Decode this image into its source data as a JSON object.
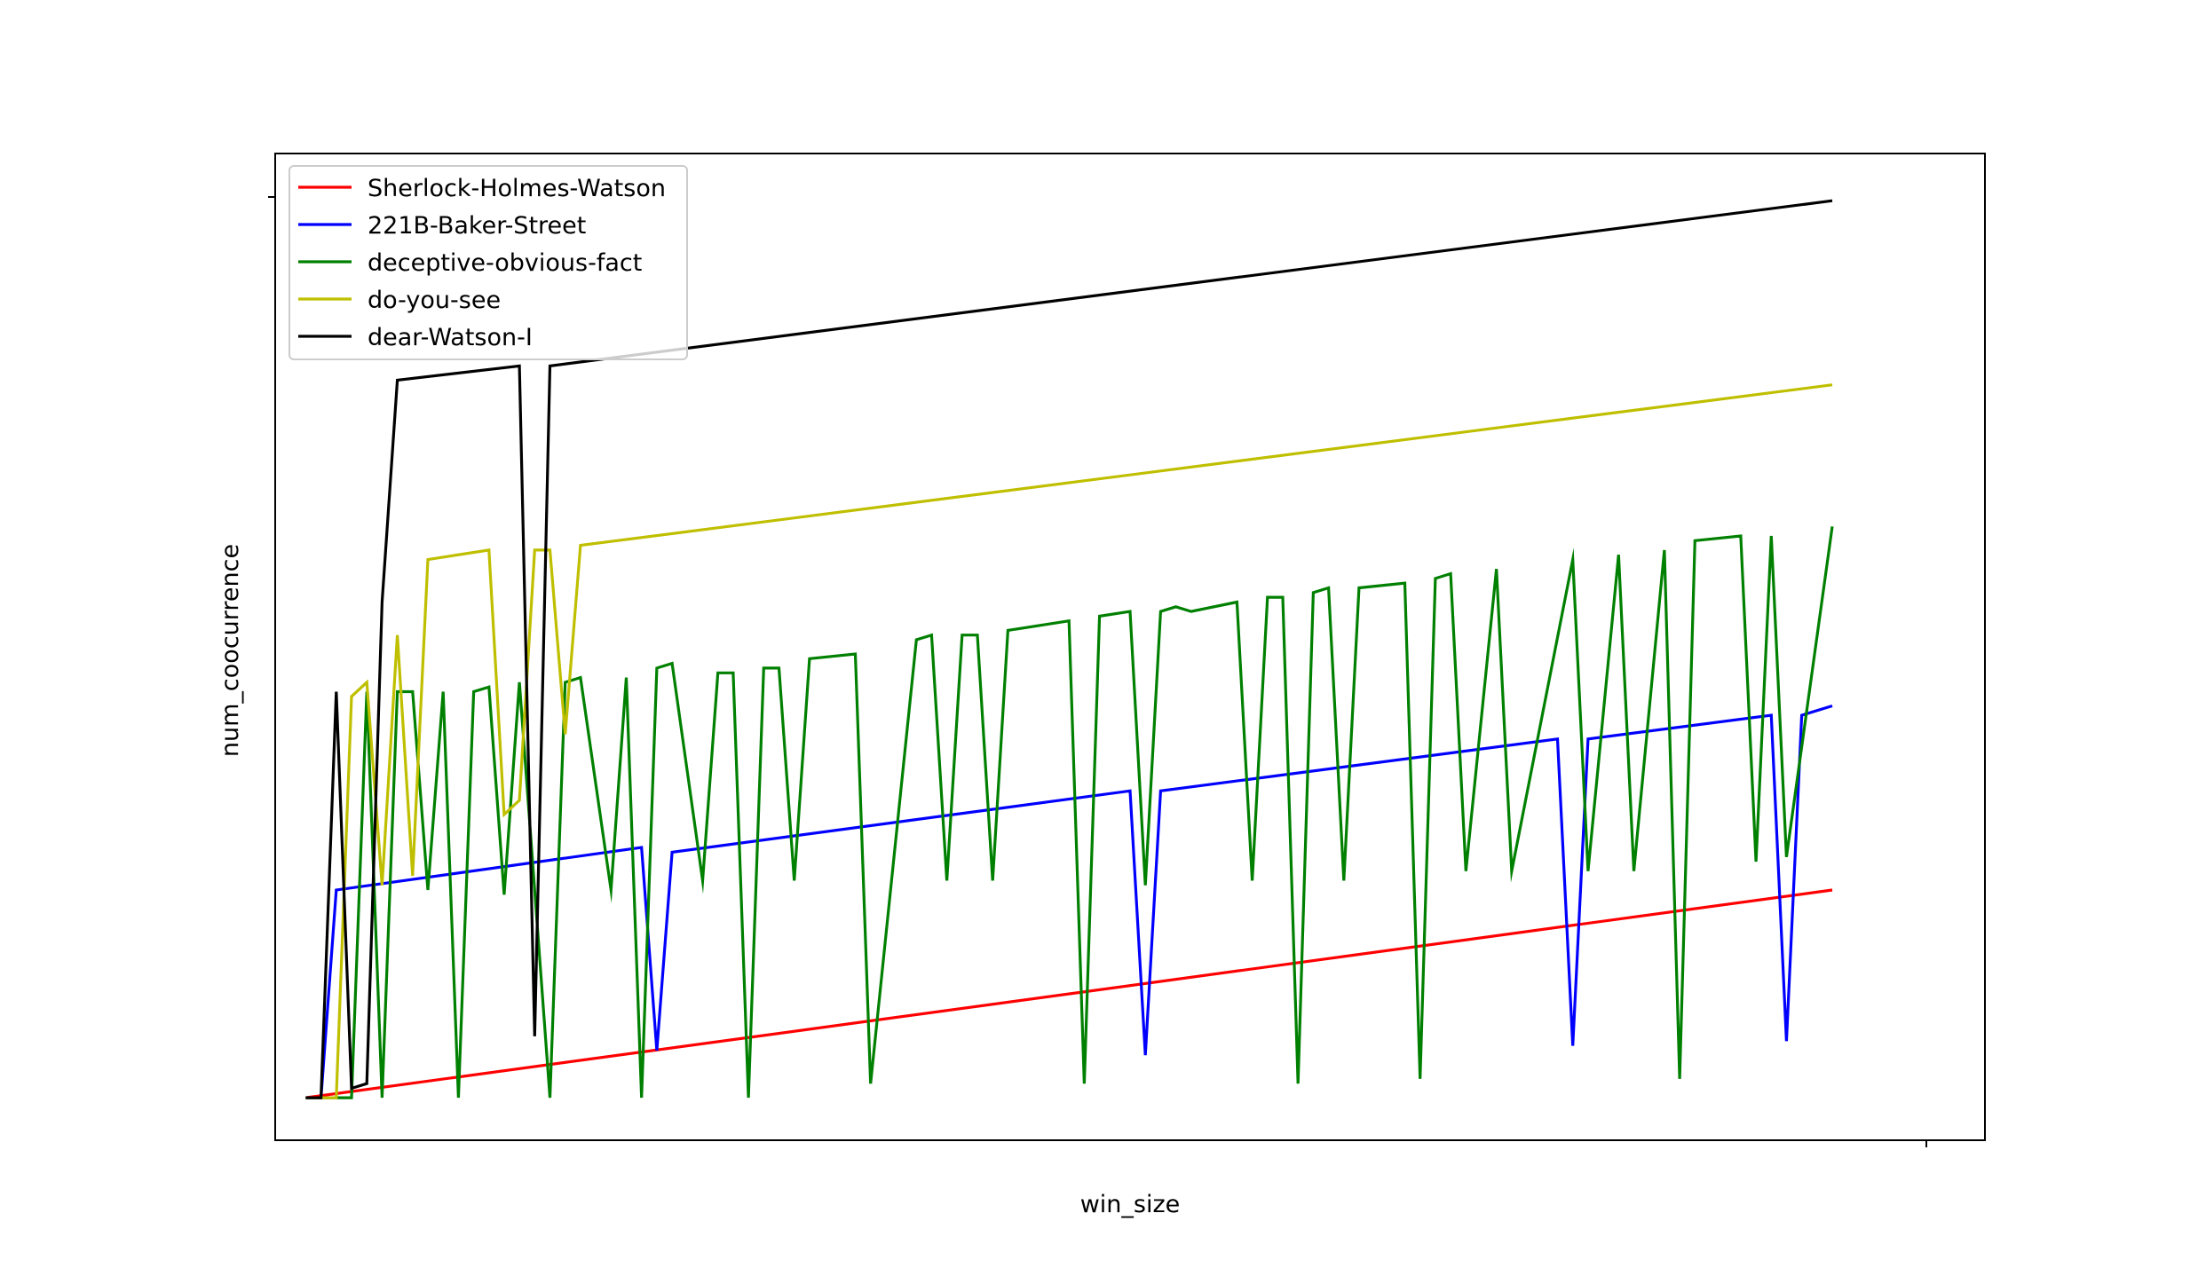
{
  "chart_data": {
    "type": "line",
    "title": "",
    "xlabel": "win_size",
    "ylabel": "num_coocurrence",
    "xlim": [
      -0.4,
      22
    ],
    "ylim": [
      -0.9,
      20
    ],
    "grid": false,
    "legend_position": "top-left",
    "series": [
      {
        "name": "Sherlock-Holmes-Watson",
        "color": "#ff0000",
        "x": [
          0,
          20
        ],
        "y": [
          0,
          4.4
        ]
      },
      {
        "name": "221B-Baker-Street",
        "color": "#0000ff",
        "x": [
          0,
          0.2,
          0.4,
          4.4,
          4.6,
          4.8,
          10.8,
          11.0,
          11.2,
          16.4,
          16.6,
          16.8,
          19.2,
          19.4,
          19.6,
          20.0
        ],
        "y": [
          0,
          0,
          4.4,
          5.3,
          1.0,
          5.2,
          6.5,
          0.9,
          6.5,
          7.6,
          1.1,
          7.6,
          8.1,
          1.2,
          8.1,
          8.3
        ]
      },
      {
        "name": "deceptive-obvious-fact",
        "color": "#008000",
        "x": [
          0,
          0.6,
          0.8,
          1.0,
          1.2,
          1.4,
          1.6,
          1.8,
          2.0,
          2.2,
          2.4,
          2.6,
          2.8,
          3.2,
          3.4,
          3.6,
          4.0,
          4.2,
          4.4,
          4.6,
          4.8,
          5.2,
          5.4,
          5.6,
          5.8,
          6.0,
          6.2,
          6.4,
          6.6,
          7.2,
          7.4,
          8.0,
          8.2,
          8.4,
          8.6,
          8.8,
          9.0,
          9.2,
          10.0,
          10.2,
          10.4,
          10.8,
          11.0,
          11.2,
          11.4,
          11.6,
          12.2,
          12.4,
          12.6,
          12.8,
          13.0,
          13.2,
          13.4,
          13.6,
          13.8,
          14.4,
          14.6,
          14.8,
          15.0,
          15.2,
          15.6,
          15.8,
          16.6,
          16.8,
          17.2,
          17.4,
          17.8,
          18.0,
          18.2,
          18.8,
          19.0,
          19.2,
          19.4,
          20.0
        ],
        "y": [
          0,
          0,
          8.6,
          0,
          8.6,
          8.6,
          4.4,
          8.6,
          0,
          8.6,
          8.7,
          4.3,
          8.8,
          0,
          8.8,
          8.9,
          4.4,
          8.9,
          0,
          9.1,
          9.2,
          4.6,
          9.0,
          9.0,
          0,
          9.1,
          9.1,
          4.6,
          9.3,
          9.4,
          0.3,
          9.7,
          9.8,
          4.6,
          9.8,
          9.8,
          4.6,
          9.9,
          10.1,
          0.3,
          10.2,
          10.3,
          4.5,
          10.3,
          10.4,
          10.3,
          10.5,
          4.6,
          10.6,
          10.6,
          0.3,
          10.7,
          10.8,
          4.6,
          10.8,
          10.9,
          0.4,
          11.0,
          11.1,
          4.8,
          11.2,
          4.8,
          11.4,
          4.8,
          11.5,
          4.8,
          11.6,
          0.4,
          11.8,
          11.9,
          5.0,
          11.9,
          5.1,
          12.1
        ]
      },
      {
        "name": "do-you-see",
        "color": "#bfbf00",
        "x": [
          0,
          0.2,
          0.4,
          0.6,
          0.8,
          1.0,
          1.2,
          1.4,
          1.6,
          2.4,
          2.6,
          2.8,
          3.0,
          3.2,
          3.4,
          3.6,
          20.0
        ],
        "y": [
          0,
          0,
          0,
          8.5,
          8.8,
          4.5,
          9.8,
          4.7,
          11.4,
          11.6,
          6.0,
          6.3,
          11.6,
          11.6,
          7.7,
          11.7,
          15.1
        ]
      },
      {
        "name": "dear-Watson-I",
        "color": "#000000",
        "x": [
          0,
          0.2,
          0.4,
          0.6,
          0.8,
          1.0,
          1.2,
          2.8,
          3.0,
          3.2,
          20.0
        ],
        "y": [
          0,
          0,
          8.6,
          0.2,
          0.3,
          10.5,
          15.2,
          15.5,
          1.3,
          15.5,
          19.0
        ]
      }
    ]
  }
}
